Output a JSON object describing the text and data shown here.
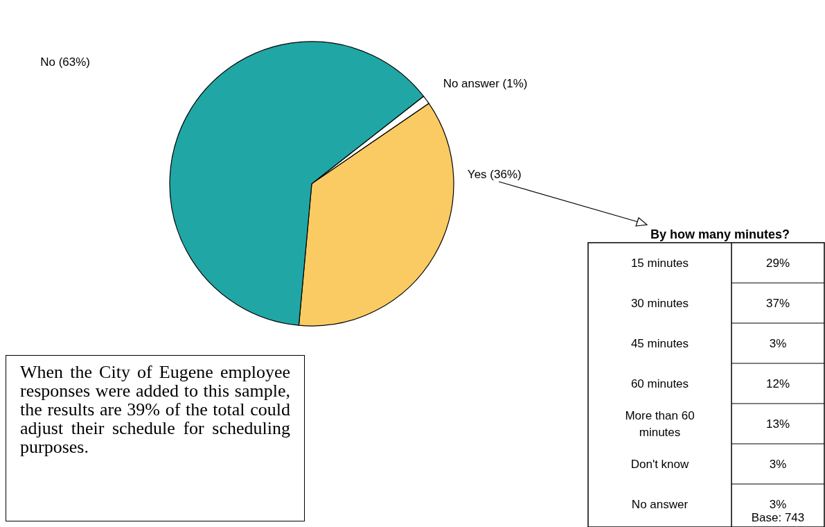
{
  "chart_data": [
    {
      "type": "pie",
      "categories": [
        "No answer",
        "Yes",
        "No"
      ],
      "values": [
        1,
        36,
        63
      ],
      "colors": [
        "#ffffff",
        "#f9cb62",
        "#20a6a5"
      ],
      "value_labels": [
        "(1%)",
        "(36%)",
        "(63%)"
      ],
      "annotations": [
        "When the City of Eugene employee responses were added to this sample, the results are 39% of the total could adjust their schedule for scheduling purposes."
      ]
    },
    {
      "type": "other",
      "title": "By how many minutes?",
      "categories": [
        "15 minutes",
        "30 minutes",
        "45 minutes",
        "60 minutes",
        "More than 60 minutes",
        "Don't know",
        "No answer"
      ],
      "value_labels": [
        "29%",
        "37%",
        "3%",
        "12%",
        "13%",
        "3%",
        "3%"
      ],
      "annotations": [
        "Base: 743"
      ]
    }
  ]
}
